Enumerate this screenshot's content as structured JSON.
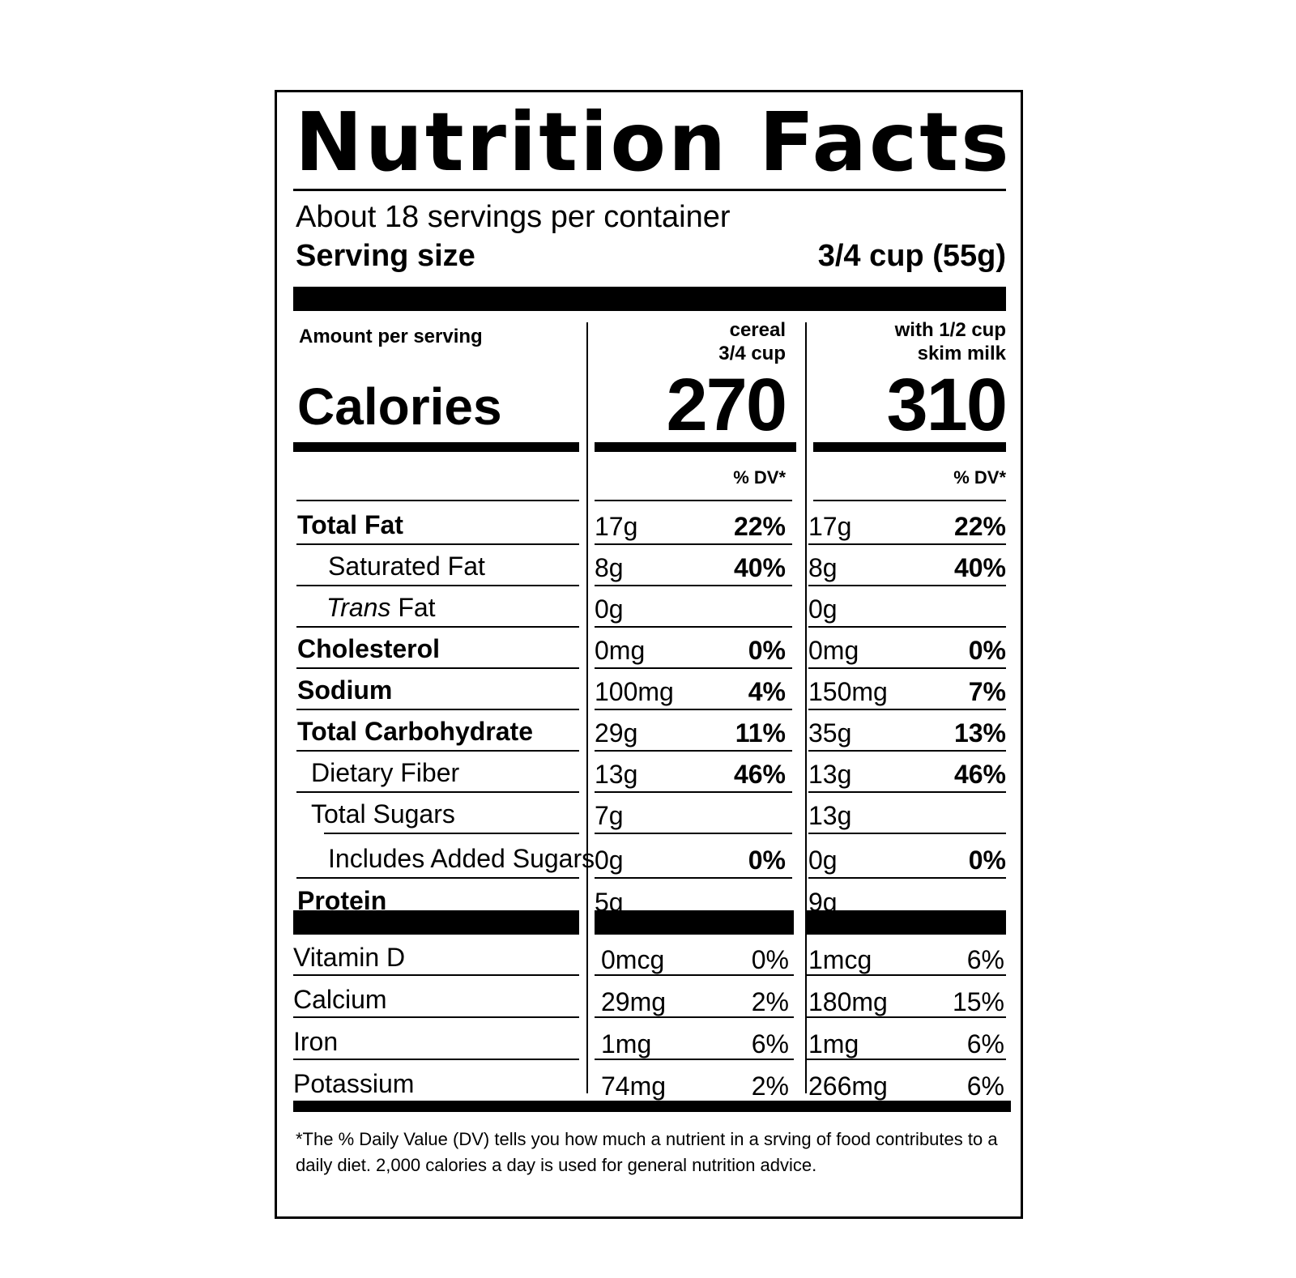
{
  "title": "Nutrition Facts",
  "servings_per_container": "About 18 servings per container",
  "serving_size_label": "Serving size",
  "serving_size_value": "3/4 cup (55g)",
  "amount_per_serving": "Amount per serving",
  "columns": [
    {
      "head_line1": "cereal",
      "head_line2": "3/4 cup",
      "calories": "270",
      "dv_label": "% DV*"
    },
    {
      "head_line1": "with 1/2 cup",
      "head_line2": "skim milk",
      "calories": "310",
      "dv_label": "% DV*"
    }
  ],
  "calories_label": "Calories",
  "nutrients": [
    {
      "label": "Total Fat",
      "c1": "17g",
      "p1": "22%",
      "c2": "17g",
      "p2": "22%"
    },
    {
      "label": "Saturated Fat",
      "c1": "8g",
      "p1": "40%",
      "c2": "8g",
      "p2": "40%"
    },
    {
      "label_italic": "Trans",
      "label_rest": " Fat",
      "c1": "0g",
      "p1": "",
      "c2": "0g",
      "p2": ""
    },
    {
      "label": "Cholesterol",
      "c1": "0mg",
      "p1": "0%",
      "c2": "0mg",
      "p2": "0%"
    },
    {
      "label": "Sodium",
      "c1": "100mg",
      "p1": "4%",
      "c2": "150mg",
      "p2": "7%"
    },
    {
      "label": "Total Carbohydrate",
      "c1": "29g",
      "p1": "11%",
      "c2": "35g",
      "p2": "13%"
    },
    {
      "label": "Dietary Fiber",
      "c1": "13g",
      "p1": "46%",
      "c2": "13g",
      "p2": "46%"
    },
    {
      "label": "Total Sugars",
      "c1": "7g",
      "p1": "",
      "c2": "13g",
      "p2": ""
    },
    {
      "label": "Includes Added Sugars",
      "c1": "0g",
      "p1": "0%",
      "c2": "0g",
      "p2": "0%"
    },
    {
      "label": "Protein",
      "c1": "5g",
      "p1": "",
      "c2": "9g",
      "p2": ""
    }
  ],
  "vitamins": [
    {
      "label": "Vitamin D",
      "c1": "0mcg",
      "p1": "0%",
      "c2": "1mcg",
      "p2": "6%"
    },
    {
      "label": "Calcium",
      "c1": "29mg",
      "p1": "2%",
      "c2": "180mg",
      "p2": "15%"
    },
    {
      "label": "Iron",
      "c1": "1mg",
      "p1": "6%",
      "c2": "1mg",
      "p2": "6%"
    },
    {
      "label": "Potassium",
      "c1": "74mg",
      "p1": "2%",
      "c2": "266mg",
      "p2": "6%"
    }
  ],
  "footnote": "*The % Daily Value (DV) tells you how much a nutrient in a srving of food contributes to a daily diet. 2,000 calories a day is used for general nutrition advice."
}
